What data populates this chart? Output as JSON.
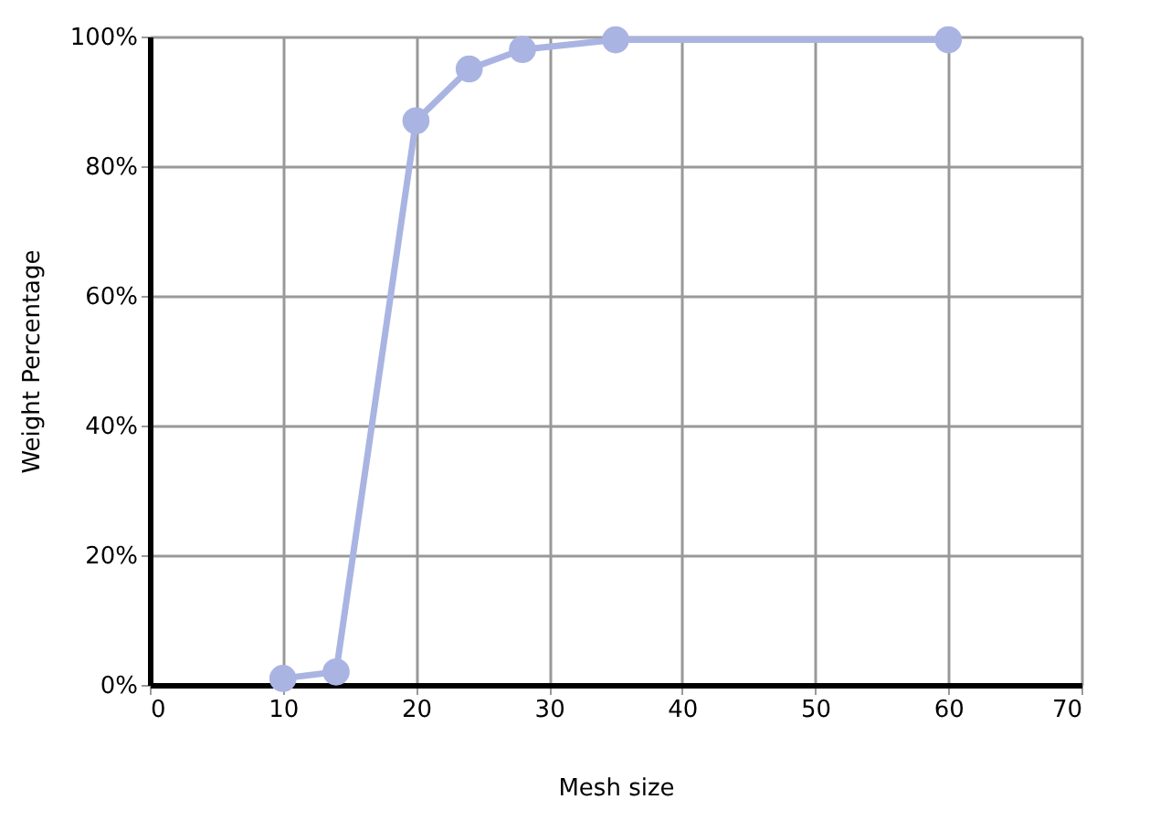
{
  "chart_data": {
    "type": "line",
    "xlabel": "Mesh size",
    "ylabel": "Weight Percentage",
    "x": [
      10,
      14,
      20,
      24,
      28,
      35,
      60
    ],
    "series": [
      {
        "color": "#aab4e2",
        "values": [
          1,
          2,
          87,
          95,
          98,
          99.5,
          99.5
        ]
      }
    ],
    "xlim": [
      0,
      70
    ],
    "xticks": [
      0,
      10,
      20,
      30,
      40,
      50,
      60,
      70
    ],
    "ylim": [
      0,
      100
    ],
    "yticks": [
      {
        "value": 0,
        "label": "0%"
      },
      {
        "value": 20,
        "label": "20%"
      },
      {
        "value": 40,
        "label": "40%"
      },
      {
        "value": 60,
        "label": "60%"
      },
      {
        "value": 80,
        "label": "80%"
      },
      {
        "value": 100,
        "label": "100%"
      }
    ],
    "grid": true,
    "marker": "circle",
    "line_style": "solid"
  }
}
